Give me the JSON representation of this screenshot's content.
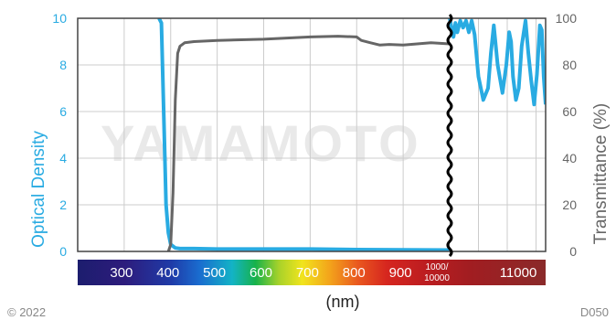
{
  "chart_data": {
    "type": "line",
    "title": "",
    "xlabel": "(nm)",
    "ylabel_left": "Optical Density",
    "ylabel_right": "Transmittance (%)",
    "ylim_left": [
      0,
      10
    ],
    "ylim_right": [
      0,
      100
    ],
    "yticks_left": [
      "0",
      "2",
      "4",
      "6",
      "8",
      "10"
    ],
    "yticks_right": [
      "0",
      "20",
      "40",
      "60",
      "80",
      "100"
    ],
    "x_tick_labels": [
      "300",
      "400",
      "500",
      "600",
      "700",
      "800",
      "900",
      "1000/10000",
      "11000"
    ],
    "x_range_left": [
      200,
      1000
    ],
    "x_range_right": [
      10000,
      11000
    ],
    "x_break": "1000/10000",
    "grid": true,
    "series": [
      {
        "name": "",
        "axis": "left",
        "color": "#29abe2",
        "x": [
          375,
          380,
          385,
          390,
          395,
          400,
          410,
          420,
          450,
          500,
          600,
          700,
          800,
          900,
          1000
        ],
        "y": [
          10,
          9.8,
          6,
          2,
          0.8,
          0.3,
          0.15,
          0.12,
          0.12,
          0.1,
          0.1,
          0.1,
          0.08,
          0.07,
          0.06
        ],
        "x2": [
          10000,
          10040,
          10060,
          10080,
          10110,
          10140,
          10170,
          10200,
          10230,
          10260,
          10300,
          10350,
          10400,
          10430,
          10460,
          10500,
          10550,
          10590,
          10620,
          10640,
          10660,
          10690,
          10720,
          10750,
          10790,
          10820,
          10850,
          10880,
          10910,
          10940,
          10960,
          10980,
          11000
        ],
        "y2": [
          10,
          9.2,
          9.8,
          9.4,
          9.9,
          9.6,
          9.9,
          9.4,
          9.9,
          9.3,
          7.5,
          6.5,
          7.0,
          8.5,
          9.7,
          8.0,
          6.8,
          8.0,
          9.4,
          9.0,
          7.5,
          6.5,
          7.0,
          8.8,
          9.9,
          8.5,
          7.3,
          6.3,
          7.6,
          9.7,
          9.5,
          7.5,
          6.3
        ]
      },
      {
        "name": "",
        "axis": "right",
        "color": "#666666",
        "x": [
          395,
          400,
          405,
          410,
          415,
          420,
          430,
          450,
          500,
          600,
          700,
          760,
          800,
          810,
          830,
          850,
          870,
          900,
          930,
          960,
          1000
        ],
        "y": [
          0,
          3,
          25,
          65,
          85,
          88,
          89.5,
          90,
          90.5,
          91,
          92,
          92.3,
          92,
          90.5,
          89.5,
          88.5,
          88.8,
          88.5,
          89,
          89.5,
          89
        ]
      }
    ],
    "watermark": "YAMAMOTO"
  },
  "footer": {
    "copyright": "© 2022",
    "code": "D050"
  },
  "colors": {
    "od_line": "#29abe2",
    "transmittance_line": "#666666",
    "grid": "#cccccc",
    "frame": "#444444",
    "break_line": "#000000"
  }
}
